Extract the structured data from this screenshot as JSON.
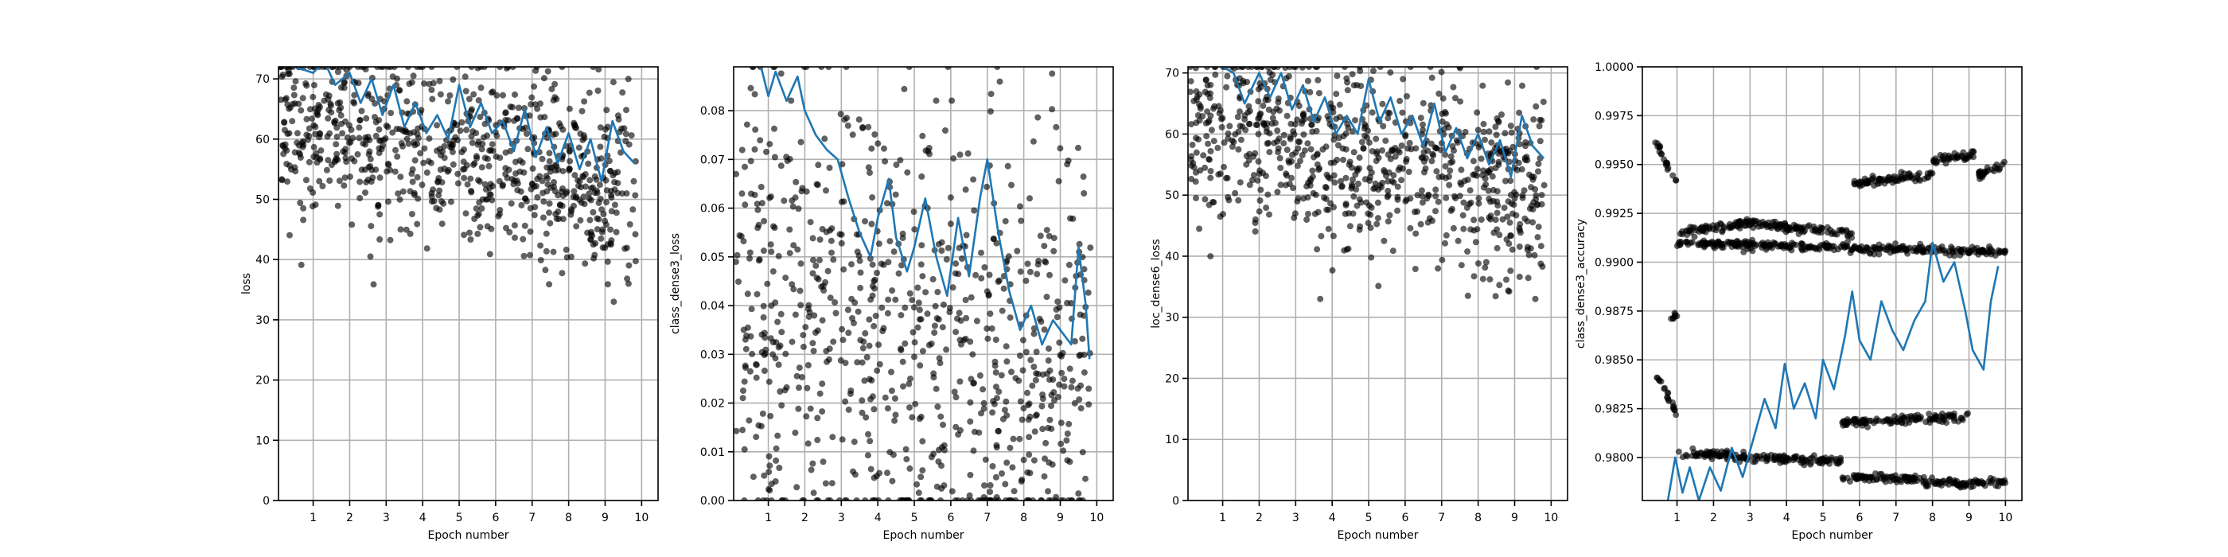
{
  "chart_data": [
    {
      "type": "scatter",
      "xlabel": "Epoch number",
      "ylabel": "loss",
      "xlim": [
        0.05,
        10.45
      ],
      "ylim": [
        0,
        72
      ],
      "xticks": [
        1,
        2,
        3,
        4,
        5,
        6,
        7,
        8,
        9,
        10
      ],
      "yticks": [
        0,
        10,
        20,
        30,
        40,
        50,
        60,
        70
      ],
      "ytick_labels": [
        "0",
        "10",
        "20",
        "30",
        "40",
        "50",
        "60",
        "70"
      ],
      "grid": true,
      "scatter_trend": {
        "start": 64,
        "end": 51,
        "spread": 8,
        "min": 33,
        "max": 72
      },
      "series": [
        {
          "type": "line",
          "color": "#1f77b4",
          "x": [
            0.2,
            0.5,
            1.0,
            1.3,
            1.6,
            2.0,
            2.3,
            2.6,
            2.9,
            3.2,
            3.5,
            3.8,
            4.1,
            4.4,
            4.7,
            5.0,
            5.3,
            5.6,
            5.9,
            6.2,
            6.5,
            6.8,
            7.1,
            7.4,
            7.7,
            8.0,
            8.3,
            8.6,
            8.9,
            9.2,
            9.5,
            9.8
          ],
          "y": [
            73,
            72,
            71,
            73,
            69,
            71,
            66,
            70,
            64,
            69,
            62,
            66,
            61,
            64,
            60,
            69,
            62,
            66,
            61,
            63,
            58,
            65,
            57,
            62,
            56,
            61,
            55,
            60,
            53,
            63,
            58,
            56
          ]
        }
      ]
    },
    {
      "type": "scatter",
      "xlabel": "Epoch number",
      "ylabel": "class_dense3_loss",
      "xlim": [
        0.05,
        10.45
      ],
      "ylim": [
        0,
        0.089
      ],
      "xticks": [
        1,
        2,
        3,
        4,
        5,
        6,
        7,
        8,
        9,
        10
      ],
      "yticks": [
        0,
        0.01,
        0.02,
        0.03,
        0.04,
        0.05,
        0.06,
        0.07,
        0.08
      ],
      "ytick_labels": [
        "0.00",
        "0.01",
        "0.02",
        "0.03",
        "0.04",
        "0.05",
        "0.06",
        "0.07",
        "0.08"
      ],
      "grid": true,
      "scatter_trend": {
        "start": 0.04,
        "end": 0.026,
        "spread": 0.024,
        "min": 0.0,
        "max": 0.089
      },
      "series": [
        {
          "type": "line",
          "color": "#1f77b4",
          "x": [
            0.8,
            1.0,
            1.2,
            1.5,
            1.8,
            2.0,
            2.3,
            2.6,
            2.9,
            3.2,
            3.5,
            3.8,
            4.0,
            4.3,
            4.5,
            4.8,
            5.0,
            5.3,
            5.6,
            5.9,
            6.2,
            6.5,
            6.8,
            7.0,
            7.3,
            7.6,
            7.9,
            8.2,
            8.5,
            8.8,
            9.0,
            9.3,
            9.5,
            9.7,
            9.8
          ],
          "y": [
            0.089,
            0.083,
            0.088,
            0.082,
            0.087,
            0.08,
            0.075,
            0.072,
            0.07,
            0.062,
            0.055,
            0.05,
            0.058,
            0.066,
            0.054,
            0.047,
            0.052,
            0.062,
            0.05,
            0.042,
            0.058,
            0.046,
            0.062,
            0.07,
            0.055,
            0.043,
            0.035,
            0.04,
            0.032,
            0.037,
            0.035,
            0.032,
            0.052,
            0.04,
            0.029
          ]
        }
      ]
    },
    {
      "type": "scatter",
      "xlabel": "Epoch number",
      "ylabel": "loc_dense6_loss",
      "xlim": [
        0.05,
        10.45
      ],
      "ylim": [
        0,
        71
      ],
      "xticks": [
        1,
        2,
        3,
        4,
        5,
        6,
        7,
        8,
        9,
        10
      ],
      "yticks": [
        0,
        10,
        20,
        30,
        40,
        50,
        60,
        70
      ],
      "ytick_labels": [
        "0",
        "10",
        "20",
        "30",
        "40",
        "50",
        "60",
        "70"
      ],
      "grid": true,
      "scatter_trend": {
        "start": 63,
        "end": 50,
        "spread": 8,
        "min": 33,
        "max": 71
      },
      "series": [
        {
          "type": "line",
          "color": "#1f77b4",
          "x": [
            1.0,
            1.3,
            1.6,
            2.0,
            2.3,
            2.6,
            2.9,
            3.2,
            3.5,
            3.8,
            4.1,
            4.4,
            4.7,
            5.0,
            5.3,
            5.6,
            5.9,
            6.2,
            6.5,
            6.8,
            7.1,
            7.4,
            7.7,
            8.0,
            8.3,
            8.6,
            8.9,
            9.2,
            9.5,
            9.8
          ],
          "y": [
            71,
            70,
            65,
            70,
            66,
            70,
            64,
            68,
            62,
            66,
            60,
            63,
            60,
            69,
            62,
            66,
            60,
            63,
            58,
            65,
            57,
            61,
            56,
            60,
            55,
            59,
            53,
            63,
            58,
            56
          ]
        }
      ]
    },
    {
      "type": "scatter",
      "xlabel": "Epoch number",
      "ylabel": "class_dense3_accuracy",
      "xlim": [
        0.05,
        10.45
      ],
      "ylim": [
        0.9778,
        1.0
      ],
      "xticks": [
        1,
        2,
        3,
        4,
        5,
        6,
        7,
        8,
        9,
        10
      ],
      "yticks": [
        0.98,
        0.9825,
        0.985,
        0.9875,
        0.99,
        0.9925,
        0.995,
        0.9975,
        1.0
      ],
      "ytick_labels": [
        "0.9800",
        "0.9825",
        "0.9850",
        "0.9875",
        "0.9900",
        "0.9925",
        "0.9950",
        "0.9975",
        "1.0000"
      ],
      "grid": true,
      "scatter_clusters": [
        {
          "x": [
            0.4,
            1.0
          ],
          "y": [
            0.9962,
            0.994
          ]
        },
        {
          "x": [
            1.0,
            3.0
          ],
          "y": [
            0.9915,
            0.992
          ]
        },
        {
          "x": [
            3.0,
            5.8
          ],
          "y": [
            0.992,
            0.9915
          ]
        },
        {
          "x": [
            5.8,
            8.0
          ],
          "y": [
            0.994,
            0.9945
          ]
        },
        {
          "x": [
            8.0,
            9.2
          ],
          "y": [
            0.9952,
            0.9955
          ]
        },
        {
          "x": [
            9.2,
            10.0
          ],
          "y": [
            0.9944,
            0.995
          ]
        },
        {
          "x": [
            1.0,
            10.0
          ],
          "y": [
            0.991,
            0.9905
          ]
        },
        {
          "x": [
            0.4,
            1.0
          ],
          "y": [
            0.9845,
            0.9822
          ]
        },
        {
          "x": [
            1.0,
            5.5
          ],
          "y": [
            0.9802,
            0.9798
          ]
        },
        {
          "x": [
            5.5,
            7.8
          ],
          "y": [
            0.979,
            0.9789
          ]
        },
        {
          "x": [
            7.8,
            10.0
          ],
          "y": [
            0.9787,
            0.9787
          ]
        },
        {
          "x": [
            5.5,
            9.0
          ],
          "y": [
            0.9818,
            0.9821
          ]
        },
        {
          "x": [
            0.8,
            1.0
          ],
          "y": [
            0.987,
            0.9873
          ]
        }
      ],
      "series": [
        {
          "type": "line",
          "color": "#1f77b4",
          "x": [
            0.75,
            0.95,
            1.15,
            1.35,
            1.6,
            1.9,
            2.2,
            2.5,
            2.8,
            3.1,
            3.4,
            3.7,
            3.95,
            4.2,
            4.5,
            4.8,
            5.0,
            5.3,
            5.6,
            5.8,
            6.0,
            6.3,
            6.6,
            6.9,
            7.2,
            7.5,
            7.8,
            8.0,
            8.3,
            8.6,
            8.9,
            9.1,
            9.4,
            9.6,
            9.8
          ],
          "y": [
            0.9778,
            0.98,
            0.9782,
            0.9795,
            0.9778,
            0.9795,
            0.9783,
            0.9805,
            0.979,
            0.981,
            0.983,
            0.9815,
            0.9848,
            0.9825,
            0.9838,
            0.982,
            0.985,
            0.9835,
            0.9862,
            0.9885,
            0.986,
            0.985,
            0.988,
            0.9865,
            0.9855,
            0.987,
            0.988,
            0.991,
            0.989,
            0.99,
            0.9875,
            0.9855,
            0.9845,
            0.988,
            0.9898
          ]
        }
      ]
    }
  ]
}
